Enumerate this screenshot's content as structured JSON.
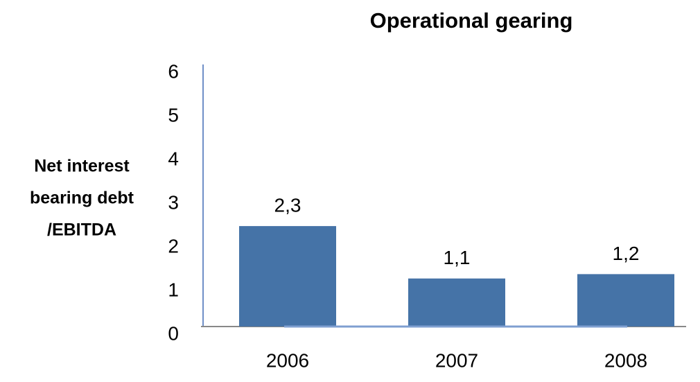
{
  "chart_data": {
    "type": "bar",
    "title": "Operational gearing",
    "ylabel": [
      "Net interest",
      "bearing debt",
      "/EBITDA"
    ],
    "categories": [
      "2006",
      "2007",
      "2008"
    ],
    "values": [
      2.3,
      1.1,
      1.2
    ],
    "value_labels": [
      "2,3",
      "1,1",
      "1,2"
    ],
    "color": "#4573a7",
    "ylim": [
      0,
      6
    ],
    "yticks": [
      0,
      1,
      2,
      3,
      4,
      5,
      6
    ],
    "grid": false
  }
}
